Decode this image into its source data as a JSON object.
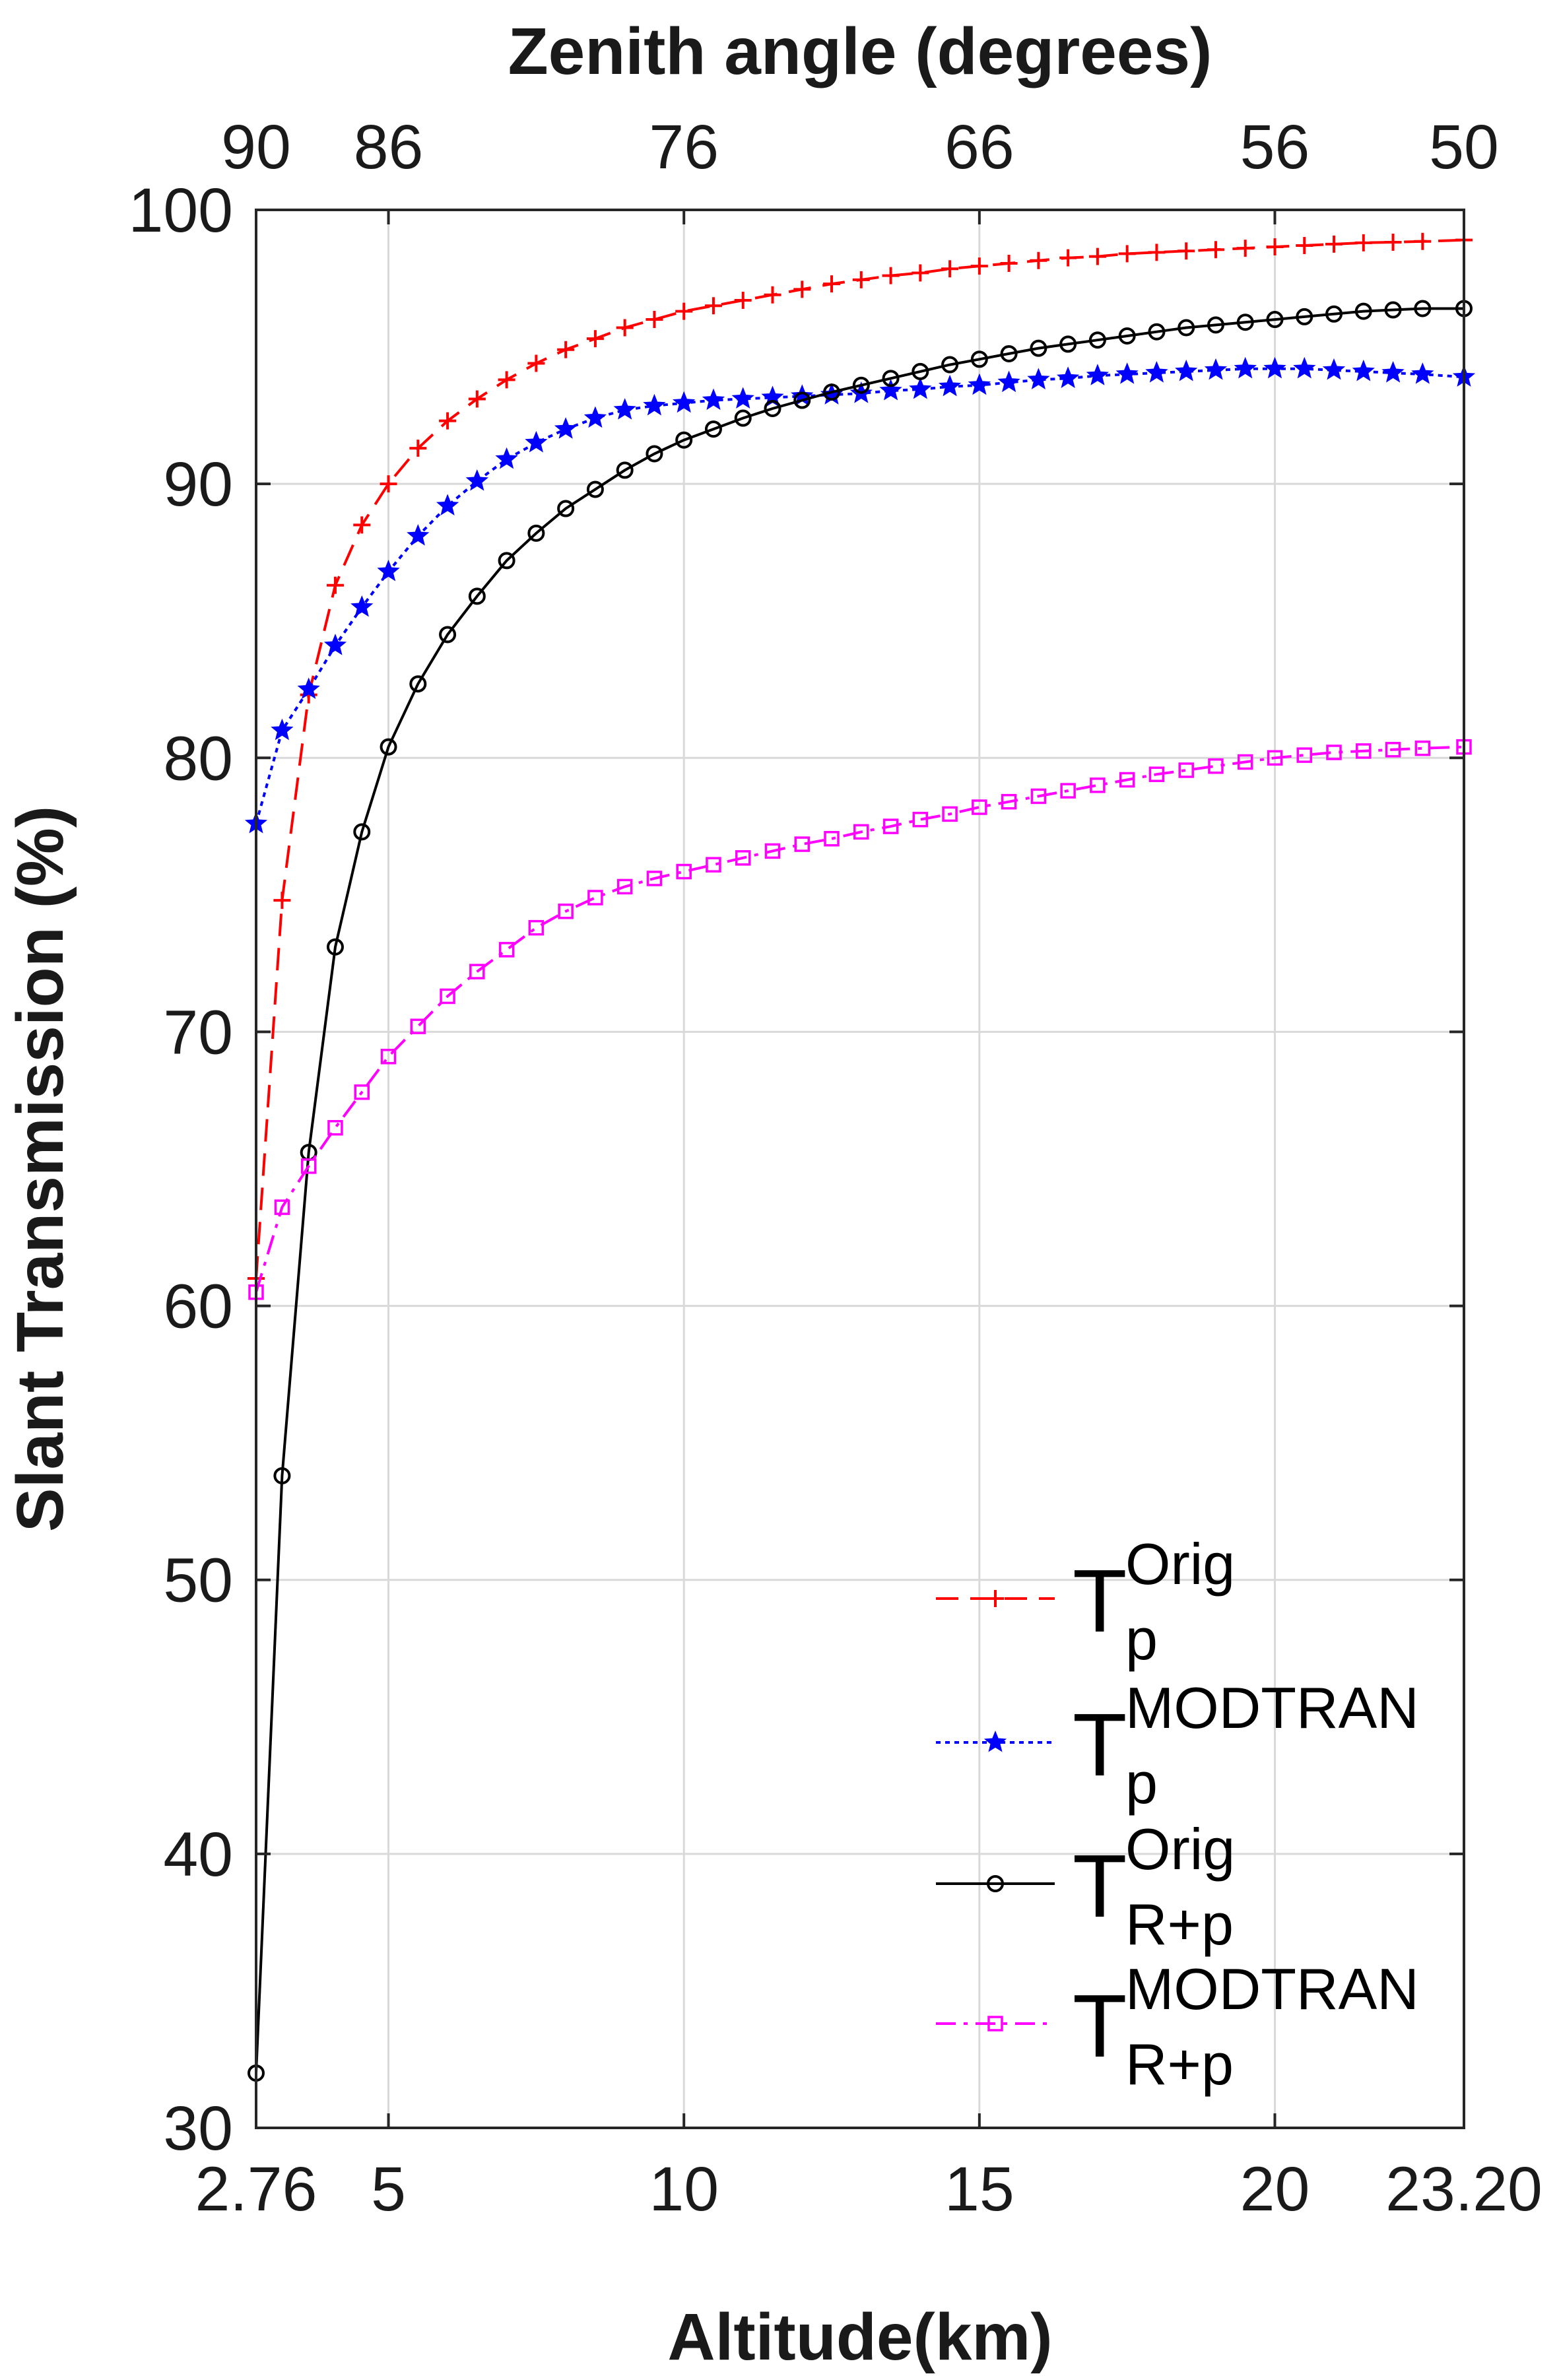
{
  "chart_data": {
    "type": "line",
    "xlabel": "Altitude(km)",
    "ylabel": "Slant Transmission (%)",
    "top_axis_title": "Zenith angle (degrees)",
    "xlim": [
      2.76,
      23.2
    ],
    "ylim": [
      30,
      100
    ],
    "x_ticks": [
      {
        "value": 2.76,
        "label": "2.76"
      },
      {
        "value": 5,
        "label": "5"
      },
      {
        "value": 10,
        "label": "10"
      },
      {
        "value": 15,
        "label": "15"
      },
      {
        "value": 20,
        "label": "20"
      },
      {
        "value": 23.2,
        "label": "23.20"
      }
    ],
    "y_ticks": [
      {
        "value": 30,
        "label": "30"
      },
      {
        "value": 40,
        "label": "40"
      },
      {
        "value": 50,
        "label": "50"
      },
      {
        "value": 60,
        "label": "60"
      },
      {
        "value": 70,
        "label": "70"
      },
      {
        "value": 80,
        "label": "80"
      },
      {
        "value": 90,
        "label": "90"
      },
      {
        "value": 100,
        "label": "100"
      }
    ],
    "top_ticks": [
      {
        "x": 2.76,
        "label": "90"
      },
      {
        "x": 5,
        "label": "86"
      },
      {
        "x": 10,
        "label": "76"
      },
      {
        "x": 15,
        "label": "66"
      },
      {
        "x": 20,
        "label": "56"
      },
      {
        "x": 23.2,
        "label": "50"
      }
    ],
    "grid": true,
    "legend_position": "bottom-right",
    "series": [
      {
        "name": "T_p^Orig",
        "legend_base": "T",
        "legend_sup": "Orig",
        "legend_sub": "p",
        "color": "#ff0000",
        "line_style": "dashed",
        "marker": "plus",
        "x": [
          2.76,
          3.2,
          3.65,
          4.1,
          4.55,
          5.0,
          5.5,
          6.0,
          6.5,
          7.0,
          7.5,
          8.0,
          8.5,
          9.0,
          9.5,
          10.0,
          10.5,
          11.0,
          11.5,
          12.0,
          12.5,
          13.0,
          13.5,
          14.0,
          14.5,
          15.0,
          15.5,
          16.0,
          16.5,
          17.0,
          17.5,
          18.0,
          18.5,
          19.0,
          19.5,
          20.0,
          20.5,
          21.0,
          21.5,
          22.0,
          22.5,
          23.2
        ],
        "y": [
          61.0,
          74.8,
          82.3,
          86.3,
          88.5,
          90.0,
          91.3,
          92.3,
          93.1,
          93.8,
          94.4,
          94.9,
          95.3,
          95.7,
          96.0,
          96.3,
          96.5,
          96.7,
          96.9,
          97.1,
          97.3,
          97.45,
          97.6,
          97.7,
          97.85,
          97.95,
          98.05,
          98.15,
          98.25,
          98.3,
          98.4,
          98.45,
          98.5,
          98.55,
          98.6,
          98.65,
          98.7,
          98.75,
          98.8,
          98.82,
          98.85,
          98.9
        ]
      },
      {
        "name": "T_p^MODTRAN",
        "legend_base": "T",
        "legend_sup": "MODTRAN",
        "legend_sub": "p",
        "color": "#0000ff",
        "line_style": "dotted",
        "marker": "star",
        "x": [
          2.76,
          3.2,
          3.65,
          4.1,
          4.55,
          5.0,
          5.5,
          6.0,
          6.5,
          7.0,
          7.5,
          8.0,
          8.5,
          9.0,
          9.5,
          10.0,
          10.5,
          11.0,
          11.5,
          12.0,
          12.5,
          13.0,
          13.5,
          14.0,
          14.5,
          15.0,
          15.5,
          16.0,
          16.5,
          17.0,
          17.5,
          18.0,
          18.5,
          19.0,
          19.5,
          20.0,
          20.5,
          21.0,
          21.5,
          22.0,
          22.5,
          23.2
        ],
        "y": [
          77.6,
          81.0,
          82.5,
          84.1,
          85.5,
          86.8,
          88.1,
          89.2,
          90.1,
          90.9,
          91.5,
          92.0,
          92.4,
          92.7,
          92.85,
          92.95,
          93.05,
          93.1,
          93.15,
          93.2,
          93.25,
          93.3,
          93.4,
          93.45,
          93.55,
          93.6,
          93.7,
          93.8,
          93.85,
          93.95,
          94.0,
          94.05,
          94.1,
          94.15,
          94.2,
          94.2,
          94.2,
          94.15,
          94.1,
          94.05,
          94.0,
          93.9
        ]
      },
      {
        "name": "T_R+p^Orig",
        "legend_base": "T",
        "legend_sup": "Orig",
        "legend_sub": "R+p",
        "color": "#000000",
        "line_style": "solid",
        "marker": "circle",
        "x": [
          2.76,
          3.2,
          3.65,
          4.1,
          4.55,
          5.0,
          5.5,
          6.0,
          6.5,
          7.0,
          7.5,
          8.0,
          8.5,
          9.0,
          9.5,
          10.0,
          10.5,
          11.0,
          11.5,
          12.0,
          12.5,
          13.0,
          13.5,
          14.0,
          14.5,
          15.0,
          15.5,
          16.0,
          16.5,
          17.0,
          17.5,
          18.0,
          18.5,
          19.0,
          19.5,
          20.0,
          20.5,
          21.0,
          21.5,
          22.0,
          22.5,
          23.2
        ],
        "y": [
          32.0,
          53.8,
          65.6,
          73.1,
          77.3,
          80.4,
          82.7,
          84.5,
          85.9,
          87.2,
          88.2,
          89.1,
          89.8,
          90.5,
          91.1,
          91.6,
          92.0,
          92.4,
          92.75,
          93.05,
          93.35,
          93.6,
          93.85,
          94.1,
          94.35,
          94.55,
          94.75,
          94.95,
          95.1,
          95.25,
          95.4,
          95.55,
          95.7,
          95.8,
          95.9,
          96.0,
          96.1,
          96.2,
          96.3,
          96.35,
          96.4,
          96.4
        ]
      },
      {
        "name": "T_R+p^MODTRAN",
        "legend_base": "T",
        "legend_sup": "MODTRAN",
        "legend_sub": "R+p",
        "color": "#ff00ff",
        "line_style": "dashdot",
        "marker": "square",
        "x": [
          2.76,
          3.2,
          3.65,
          4.1,
          4.55,
          5.0,
          5.5,
          6.0,
          6.5,
          7.0,
          7.5,
          8.0,
          8.5,
          9.0,
          9.5,
          10.0,
          10.5,
          11.0,
          11.5,
          12.0,
          12.5,
          13.0,
          13.5,
          14.0,
          14.5,
          15.0,
          15.5,
          16.0,
          16.5,
          17.0,
          17.5,
          18.0,
          18.5,
          19.0,
          19.5,
          20.0,
          20.5,
          21.0,
          21.5,
          22.0,
          22.5,
          23.2
        ],
        "y": [
          60.5,
          63.6,
          65.1,
          66.5,
          67.8,
          69.1,
          70.2,
          71.3,
          72.2,
          73.0,
          73.8,
          74.4,
          74.9,
          75.3,
          75.6,
          75.85,
          76.1,
          76.35,
          76.6,
          76.85,
          77.05,
          77.3,
          77.5,
          77.75,
          77.95,
          78.2,
          78.4,
          78.6,
          78.8,
          79.0,
          79.2,
          79.4,
          79.55,
          79.7,
          79.85,
          80.0,
          80.1,
          80.2,
          80.25,
          80.3,
          80.35,
          80.4
        ]
      }
    ]
  }
}
